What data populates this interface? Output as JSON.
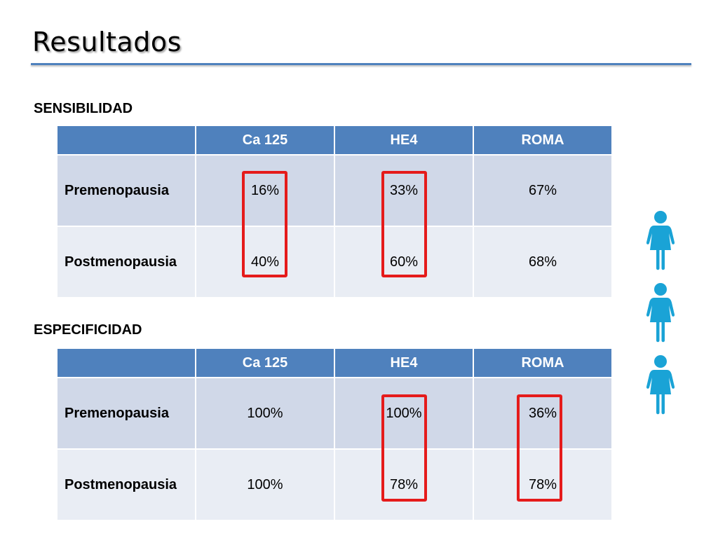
{
  "slide": {
    "title": "Resultados"
  },
  "colors": {
    "header_fill": "#4f81bd",
    "row_band_dark": "#d0d8e8",
    "row_band_light": "#e9edf4",
    "highlight": "#e51b1b",
    "icon": "#1aa3d6"
  },
  "sensibilidad": {
    "heading": "SENSIBILIDAD",
    "columns": [
      "",
      "Ca 125",
      "HE4",
      "ROMA"
    ],
    "rows": [
      {
        "label": "Premenopausia",
        "values": [
          "16%",
          "33%",
          "67%"
        ]
      },
      {
        "label": "Postmenopausia",
        "values": [
          "40%",
          "60%",
          "68%"
        ]
      }
    ],
    "highlighted_columns": [
      "Ca 125",
      "HE4"
    ]
  },
  "especificidad": {
    "heading": "ESPECIFICIDAD",
    "columns": [
      "",
      "Ca 125",
      "HE4",
      "ROMA"
    ],
    "rows": [
      {
        "label": "Premenopausia",
        "values": [
          "100%",
          "100%",
          "36%"
        ]
      },
      {
        "label": "Postmenopausia",
        "values": [
          "100%",
          "78%",
          "78%"
        ]
      }
    ],
    "highlighted_columns": [
      "HE4",
      "ROMA"
    ]
  },
  "icons": [
    "woman-icon",
    "woman-icon",
    "woman-icon"
  ]
}
